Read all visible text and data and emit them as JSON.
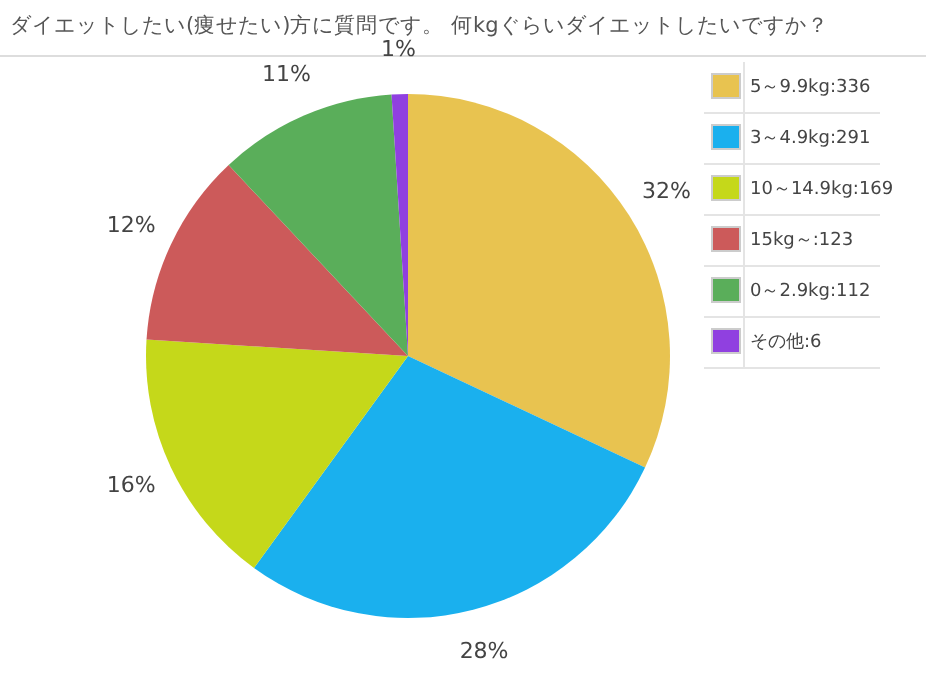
{
  "chart_data": {
    "type": "pie",
    "title": "ダイエットしたい(痩せたい)方に質問です。 何kgぐらいダイエットしたいですか？",
    "categories": [
      "5～9.9kg:336",
      "3～4.9kg:291",
      "10～14.9kg:169",
      "15kg～:123",
      "0～2.9kg:112",
      "その他:6"
    ],
    "values": [
      32,
      28,
      16,
      12,
      11,
      1
    ],
    "colors": [
      "#e8c350",
      "#1ab0ee",
      "#c5d81a",
      "#cc5a5a",
      "#5aae5a",
      "#9040e0"
    ],
    "value_labels": [
      "32%",
      "28%",
      "16%",
      "12%",
      "11%",
      "1%"
    ],
    "legend": "right"
  }
}
